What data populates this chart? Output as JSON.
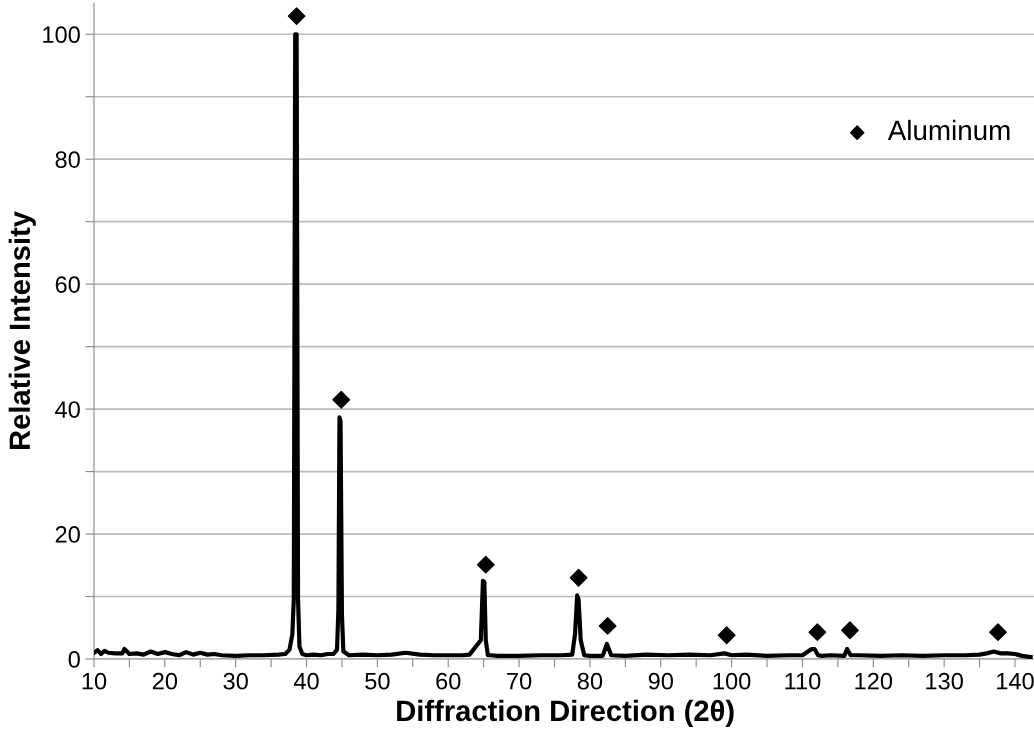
{
  "chart_data": {
    "type": "line",
    "xlabel": "Diffraction Direction (2θ)",
    "ylabel": "Relative Intensity",
    "xlim": [
      10,
      143
    ],
    "ylim": [
      0,
      105
    ],
    "xticks": [
      10,
      {
        "value": 15,
        "label": null
      },
      20,
      {
        "value": 25,
        "label": null
      },
      30,
      {
        "value": 35,
        "label": null
      },
      40,
      {
        "value": 45,
        "label": null
      },
      50,
      {
        "value": 55,
        "label": null
      },
      60,
      {
        "value": 65,
        "label": null
      },
      70,
      {
        "value": 75,
        "label": null
      },
      80,
      {
        "value": 85,
        "label": null
      },
      90,
      {
        "value": 95,
        "label": null
      },
      100,
      {
        "value": 105,
        "label": null
      },
      110,
      {
        "value": 115,
        "label": null
      },
      120,
      {
        "value": 125,
        "label": null
      },
      130,
      {
        "value": 135,
        "label": null
      },
      140
    ],
    "yticks": [
      0,
      {
        "value": 10,
        "label": null
      },
      20,
      {
        "value": 30,
        "label": null
      },
      40,
      {
        "value": 50,
        "label": null
      },
      60,
      {
        "value": 70,
        "label": null
      },
      80,
      {
        "value": 90,
        "label": null
      },
      100
    ],
    "grid": "y",
    "legend": "top right",
    "series": [
      {
        "color": "#000000",
        "marker": "none",
        "line_style": "solid",
        "x": [
          10,
          10.5,
          11,
          11.5,
          12,
          13,
          14,
          14.3,
          15,
          16,
          17,
          18,
          19,
          20,
          21,
          22,
          23,
          24,
          25,
          26,
          27,
          28,
          30,
          32,
          34,
          36,
          37,
          37.6,
          38.0,
          38.2,
          38.4,
          38.6,
          38.8,
          39.0,
          39.4,
          40,
          41,
          42,
          43,
          43.8,
          44.3,
          44.5,
          44.65,
          44.8,
          45.0,
          45.2,
          46,
          48,
          50,
          52,
          54,
          56,
          58,
          60,
          62,
          63,
          64.6,
          64.9,
          65.1,
          65.3,
          65.6,
          66,
          67,
          70,
          73,
          76,
          77.5,
          77.9,
          78.2,
          78.4,
          78.7,
          79.2,
          80,
          81.8,
          82.4,
          83,
          85,
          88,
          91,
          94,
          97,
          99,
          100,
          102,
          105,
          108,
          110,
          111.3,
          111.7,
          112.2,
          112.7,
          114,
          115.9,
          116.3,
          116.8,
          118,
          121,
          124,
          127,
          130,
          133,
          135,
          136,
          137,
          138,
          139,
          140,
          141,
          142.2
        ],
        "values": [
          1.0,
          1.4,
          0.8,
          1.3,
          1.0,
          0.9,
          0.9,
          1.6,
          0.8,
          0.9,
          0.7,
          1.2,
          0.8,
          1.1,
          0.8,
          0.6,
          1.1,
          0.7,
          1.0,
          0.7,
          0.8,
          0.6,
          0.5,
          0.6,
          0.6,
          0.7,
          0.8,
          1.5,
          4.0,
          9.5,
          100,
          100,
          9.5,
          2.0,
          0.8,
          0.6,
          0.7,
          0.6,
          0.8,
          0.8,
          1.5,
          8.0,
          38.7,
          38.0,
          7.0,
          1.2,
          0.6,
          0.7,
          0.6,
          0.7,
          1.0,
          0.7,
          0.6,
          0.6,
          0.6,
          0.7,
          3.0,
          12.5,
          12.3,
          3.0,
          0.6,
          0.6,
          0.5,
          0.5,
          0.6,
          0.6,
          0.7,
          4.0,
          10.2,
          9.5,
          3.0,
          0.6,
          0.5,
          0.5,
          2.4,
          0.6,
          0.5,
          0.7,
          0.6,
          0.7,
          0.6,
          0.9,
          0.6,
          0.7,
          0.5,
          0.6,
          0.6,
          1.6,
          1.6,
          0.6,
          0.5,
          0.6,
          0.5,
          1.6,
          0.6,
          0.6,
          0.5,
          0.6,
          0.5,
          0.6,
          0.6,
          0.7,
          0.9,
          1.2,
          0.9,
          0.9,
          0.8,
          0.5,
          0.3
        ]
      },
      {
        "type": "scatter",
        "name": "Aluminum",
        "color": "#000000",
        "marker": "diamond",
        "x": [
          38.6,
          44.9,
          65.3,
          78.4,
          82.5,
          99.3,
          112.1,
          116.7,
          137.6
        ],
        "values": [
          102.9,
          41.5,
          15.1,
          13.0,
          5.3,
          3.8,
          4.3,
          4.6,
          4.3
        ]
      }
    ]
  }
}
